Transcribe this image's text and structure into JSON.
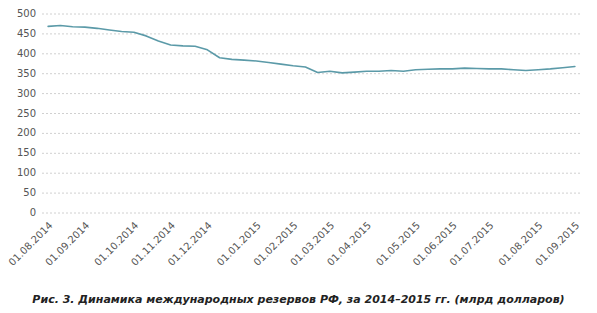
{
  "chart_data": {
    "type": "line",
    "title": "Рис. 3. Динамика международных резервов РФ, за 2014–2015 гг. (млрд долларов)",
    "categories": [
      "01.08.2014",
      null,
      null,
      "01.09.2014",
      null,
      null,
      null,
      "01.10.2014",
      null,
      null,
      "01.11.2014",
      null,
      null,
      "01.12.2014",
      null,
      null,
      null,
      "01.01.2015",
      null,
      null,
      "01.02.2015",
      null,
      null,
      "01.03.2015",
      null,
      null,
      "01.04.2015",
      null,
      null,
      null,
      "01.05.2015",
      null,
      null,
      "01.06.2015",
      null,
      null,
      "01.07.2015",
      null,
      null,
      null,
      "01.08.2015",
      null,
      null,
      "01.09.2015"
    ],
    "values": [
      469,
      471,
      468,
      467,
      464,
      460,
      456,
      454,
      445,
      432,
      422,
      420,
      419,
      410,
      390,
      386,
      384,
      382,
      378,
      374,
      370,
      367,
      353,
      356,
      352,
      354,
      356,
      356,
      358,
      356,
      360,
      361,
      362,
      362,
      364,
      363,
      362,
      362,
      360,
      358,
      360,
      362,
      365,
      368
    ],
    "color": "#5b9aa8",
    "ylim": [
      0,
      500
    ],
    "yticks": [
      0,
      50,
      100,
      150,
      200,
      250,
      300,
      350,
      400,
      450,
      500
    ],
    "grid": true
  }
}
